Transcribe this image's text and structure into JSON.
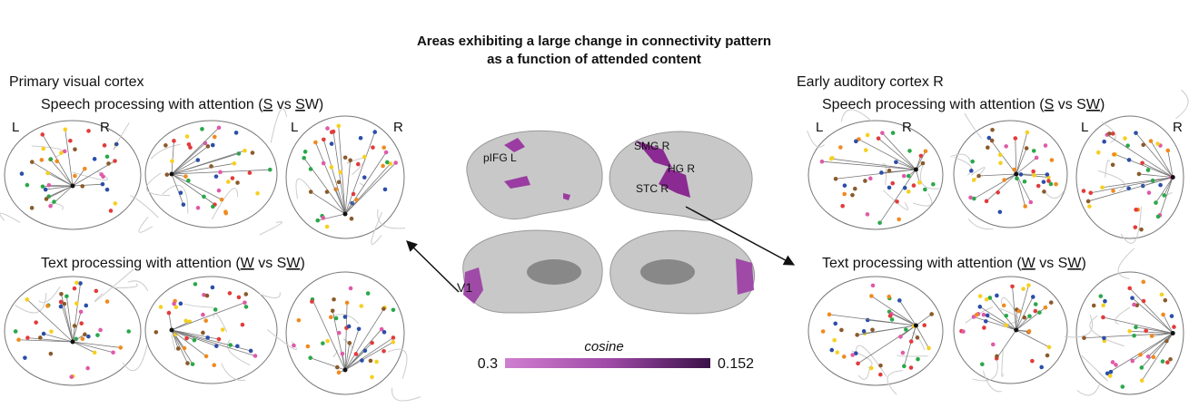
{
  "title": [
    "Areas exhibiting a large change in connectivity pattern",
    "as a function of attended content"
  ],
  "panels": [
    {
      "title": "Primary visual cortex",
      "rows": [
        {
          "subtitle": [
            {
              "text": "Speech processing with attention (",
              "u": false
            },
            {
              "text": "S",
              "u": true
            },
            {
              "text": " vs ",
              "u": false
            },
            {
              "text": "S",
              "u": true
            },
            {
              "text": "W)",
              "u": false
            }
          ]
        },
        {
          "subtitle": [
            {
              "text": "Text processing with attention (",
              "u": false
            },
            {
              "text": "W",
              "u": true
            },
            {
              "text": " vs S",
              "u": false
            },
            {
              "text": "W",
              "u": true
            },
            {
              "text": ")",
              "u": false
            }
          ]
        }
      ],
      "hemisphere_labels": [
        "L",
        "R"
      ]
    },
    {
      "title": "Early auditory cortex R",
      "rows": [
        {
          "subtitle": [
            {
              "text": "Speech processing with attention (",
              "u": false
            },
            {
              "text": "S",
              "u": true
            },
            {
              "text": " vs S",
              "u": false
            },
            {
              "text": "W",
              "u": true
            },
            {
              "text": ")",
              "u": false
            }
          ]
        },
        {
          "subtitle": [
            {
              "text": "Text processing with attention (",
              "u": false
            },
            {
              "text": "W",
              "u": true
            },
            {
              "text": " vs S",
              "u": false
            },
            {
              "text": "W",
              "u": true
            },
            {
              "text": ")",
              "u": false
            }
          ]
        }
      ],
      "hemisphere_labels": [
        "L",
        "R"
      ]
    }
  ],
  "regions": [
    "pIFG L",
    "SMG R",
    "HG R",
    "STC R",
    "V1"
  ],
  "colorbar": {
    "title": "cosine",
    "min_label": "0.3",
    "max_label": "0.152"
  }
}
